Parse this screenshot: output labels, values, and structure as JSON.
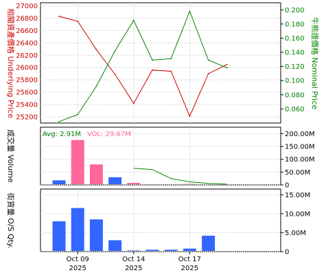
{
  "colors": {
    "underlying": "#cc0000",
    "nominal": "#008000",
    "volume_bar": "#ff6699",
    "volume_bar_alt": "#3366ff",
    "volume_avg": "#008000",
    "os_bar": "#3366ff"
  },
  "chart_data": [
    {
      "type": "line",
      "x": [
        "2025-10-08",
        "2025-10-09",
        "2025-10-10",
        "2025-10-13",
        "2025-10-14",
        "2025-10-15",
        "2025-10-16",
        "2025-10-17",
        "2025-10-20",
        "2025-10-21"
      ],
      "series": [
        {
          "name": "",
          "values": [
            26830,
            26750,
            26290,
            25890,
            25420,
            25960,
            25940,
            25210,
            25900,
            26050
          ],
          "axis": "left"
        },
        {
          "name": "",
          "values": [
            0.042,
            0.052,
            0.092,
            0.142,
            0.185,
            0.129,
            0.131,
            0.198,
            0.129,
            0.118
          ],
          "axis": "right"
        }
      ],
      "ylabel_left": "相關資產價格 Underlying Price",
      "ylabel_right": "牛熊證價格 Nominal Price",
      "yticks_left": [
        "25200",
        "25400",
        "25600",
        "25800",
        "26000",
        "26200",
        "26400",
        "26600",
        "26800",
        "27000"
      ],
      "yticks_right": [
        "0.060",
        "0.080",
        "0.100",
        "0.120",
        "0.140",
        "0.160",
        "0.180",
        "0.200"
      ],
      "ylim_left": [
        25100,
        27050
      ],
      "ylim_right": [
        0.04,
        0.21
      ],
      "grid": true
    },
    {
      "type": "bar",
      "x": [
        "2025-10-08",
        "2025-10-09",
        "2025-10-10",
        "2025-10-13",
        "2025-10-14",
        "2025-10-15",
        "2025-10-16",
        "2025-10-17",
        "2025-10-20",
        "2025-10-21"
      ],
      "values": [
        18.0,
        175.0,
        80.0,
        30.0,
        8.0,
        0,
        0,
        4.0,
        2.0,
        0
      ],
      "bar_colors": [
        "blue",
        "pink",
        "pink",
        "blue",
        "pink",
        "blue",
        "blue",
        "pink",
        "blue",
        "blue"
      ],
      "avg_line": [
        null,
        null,
        null,
        null,
        65.0,
        60.0,
        25.0,
        12.0,
        6.0,
        3.0
      ],
      "annotation_avg": "Avg: 2.91M",
      "annotation_vol": "VOL: 29.67M",
      "ylabel": "成交量 Volume",
      "yticks": [
        "0",
        "50.00M",
        "100.00M",
        "150.00M",
        "200.00M"
      ],
      "ylim": [
        0,
        225
      ],
      "unit": "M",
      "grid": true
    },
    {
      "type": "bar",
      "x": [
        "2025-10-08",
        "2025-10-09",
        "2025-10-10",
        "2025-10-13",
        "2025-10-14",
        "2025-10-15",
        "2025-10-16",
        "2025-10-17",
        "2025-10-20",
        "2025-10-21"
      ],
      "values": [
        8.0,
        11.5,
        8.5,
        3.0,
        0.3,
        0.5,
        0.5,
        0.8,
        4.2,
        0
      ],
      "ylabel": "街貨量 O/S Qty.",
      "yticks": [
        "0",
        "5.00M",
        "10.00M",
        "15.00M"
      ],
      "ylim": [
        0,
        16.5
      ],
      "unit": "M",
      "grid": true
    }
  ],
  "xticks": [
    {
      "date": "2025-10-09",
      "line1": "Oct 09",
      "line2": "2025"
    },
    {
      "date": "2025-10-14",
      "line1": "Oct 14",
      "line2": "2025"
    },
    {
      "date": "2025-10-17",
      "line1": "Oct 17",
      "line2": "2025"
    }
  ]
}
